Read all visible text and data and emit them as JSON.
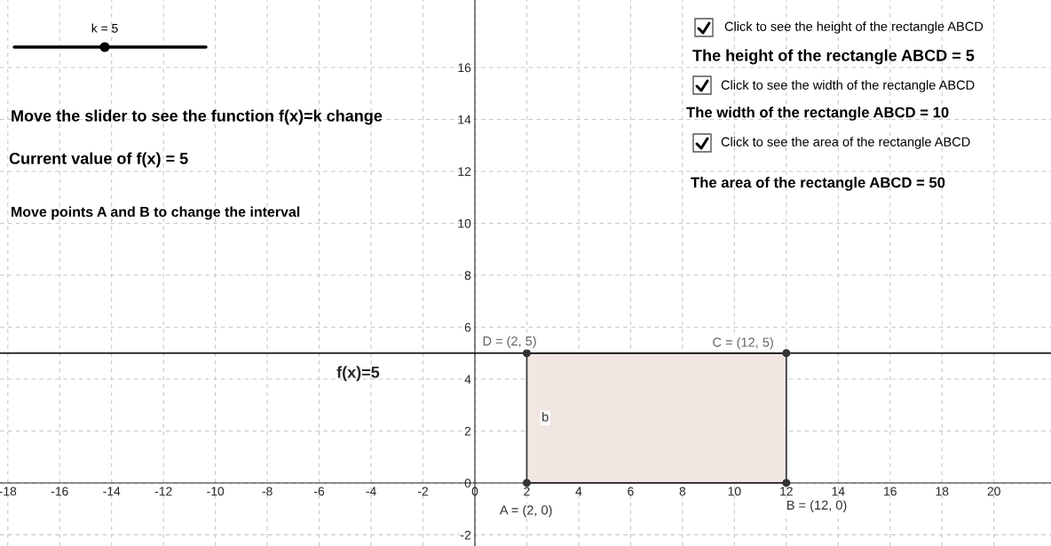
{
  "chart_data": {
    "type": "line",
    "series": [
      {
        "type": "area",
        "color": "#f2e6e2",
        "x": [
          2,
          12
        ],
        "values": [
          5,
          5
        ]
      },
      {
        "name": "f(x)=5",
        "color": "#000000",
        "x": [
          -18.3,
          22.2
        ],
        "values": [
          5,
          5
        ],
        "marker": "none"
      },
      {
        "type": "scatter",
        "color": "#333333",
        "x": [
          2,
          12,
          12,
          2
        ],
        "values": [
          0,
          0,
          5,
          5
        ],
        "marker": "circle"
      }
    ],
    "xlim": [
      -18.3,
      22.2
    ],
    "ylim": [
      -2.43,
      18.6
    ],
    "xticks": [
      -18,
      -16,
      -14,
      -12,
      -10,
      -8,
      -6,
      -4,
      -2,
      0,
      2,
      4,
      6,
      8,
      10,
      12,
      14,
      16,
      18,
      20
    ],
    "yticks": [
      -2,
      0,
      2,
      4,
      6,
      8,
      10,
      12,
      14,
      16
    ],
    "grid": true,
    "annotations": [
      "A = (2, 0)",
      "B = (12, 0)",
      "C = (12, 5)",
      "D = (2, 5)",
      "b",
      "k = 5",
      "Move the slider to see the function f(x)=k change",
      "Current value of f(x) = 5",
      "Move points A and B to change the interval",
      "Click to see the height of the rectangle ABCD",
      "The height of the rectangle ABCD = 5",
      "Click to see the width of the rectangle ABCD",
      "The width of the rectangle ABCD = 10",
      "Click to see the area of the rectangle ABCD",
      "The area of the rectangle ABCD = 50"
    ]
  }
}
